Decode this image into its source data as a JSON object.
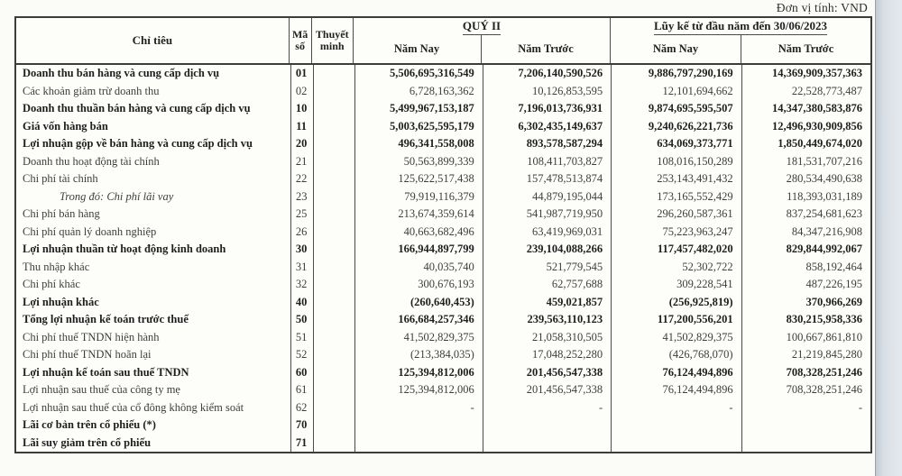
{
  "unit_label": "Đơn vị tính: VND",
  "table": {
    "header": {
      "criteria": "Chỉ tiêu",
      "code": "Mã số",
      "notes": "Thuyết minh",
      "group_q2": "QUÝ II",
      "group_ytd": "Lũy kế từ đầu năm đến 30/06/2023",
      "col_current": "Năm Nay",
      "col_prior": "Năm Trước"
    },
    "rows": [
      {
        "label": "Doanh thu bán hàng và cung cấp dịch vụ",
        "code": "01",
        "note": "",
        "q2_now": "5,506,695,316,549",
        "q2_prior": "7,206,140,590,526",
        "ytd_now": "9,886,797,290,169",
        "ytd_prior": "14,369,909,357,363",
        "style": "bold"
      },
      {
        "label": "Các khoản giảm trừ doanh thu",
        "code": "02",
        "note": "",
        "q2_now": "6,728,163,362",
        "q2_prior": "10,126,853,595",
        "ytd_now": "12,101,694,662",
        "ytd_prior": "22,528,773,487",
        "style": "normal"
      },
      {
        "label": "Doanh thu thuần bán hàng và cung cấp dịch vụ",
        "code": "10",
        "note": "",
        "q2_now": "5,499,967,153,187",
        "q2_prior": "7,196,013,736,931",
        "ytd_now": "9,874,695,595,507",
        "ytd_prior": "14,347,380,583,876",
        "style": "bold"
      },
      {
        "label": "Giá vốn hàng bán",
        "code": "11",
        "note": "",
        "q2_now": "5,003,625,595,179",
        "q2_prior": "6,302,435,149,637",
        "ytd_now": "9,240,626,221,736",
        "ytd_prior": "12,496,930,909,856",
        "style": "bold"
      },
      {
        "label": "Lợi nhuận gộp về bán hàng và cung cấp dịch vụ",
        "code": "20",
        "note": "",
        "q2_now": "496,341,558,008",
        "q2_prior": "893,578,587,294",
        "ytd_now": "634,069,373,771",
        "ytd_prior": "1,850,449,674,020",
        "style": "bold"
      },
      {
        "label": "Doanh thu hoạt động tài chính",
        "code": "21",
        "note": "",
        "q2_now": "50,563,899,339",
        "q2_prior": "108,411,703,827",
        "ytd_now": "108,016,150,289",
        "ytd_prior": "181,531,707,216",
        "style": "normal"
      },
      {
        "label": "Chi phí tài chính",
        "code": "22",
        "note": "",
        "q2_now": "125,622,517,438",
        "q2_prior": "157,478,513,874",
        "ytd_now": "253,143,491,432",
        "ytd_prior": "280,534,490,638",
        "style": "normal"
      },
      {
        "label": "Trong đó: Chi phí lãi vay",
        "code": "23",
        "note": "",
        "q2_now": "79,919,116,379",
        "q2_prior": "44,879,195,044",
        "ytd_now": "173,165,552,429",
        "ytd_prior": "118,393,031,189",
        "style": "italic"
      },
      {
        "label": "Chi phí bán hàng",
        "code": "25",
        "note": "",
        "q2_now": "213,674,359,614",
        "q2_prior": "541,987,719,950",
        "ytd_now": "296,260,587,361",
        "ytd_prior": "837,254,681,623",
        "style": "normal"
      },
      {
        "label": "Chi phí quản lý doanh nghiệp",
        "code": "26",
        "note": "",
        "q2_now": "40,663,682,496",
        "q2_prior": "63,419,969,031",
        "ytd_now": "75,223,963,247",
        "ytd_prior": "84,347,216,908",
        "style": "normal"
      },
      {
        "label": "Lợi nhuận thuần từ hoạt động kinh doanh",
        "code": "30",
        "note": "",
        "q2_now": "166,944,897,799",
        "q2_prior": "239,104,088,266",
        "ytd_now": "117,457,482,020",
        "ytd_prior": "829,844,992,067",
        "style": "bold"
      },
      {
        "label": "Thu nhập khác",
        "code": "31",
        "note": "",
        "q2_now": "40,035,740",
        "q2_prior": "521,779,545",
        "ytd_now": "52,302,722",
        "ytd_prior": "858,192,464",
        "style": "normal"
      },
      {
        "label": "Chi phí khác",
        "code": "32",
        "note": "",
        "q2_now": "300,676,193",
        "q2_prior": "62,757,688",
        "ytd_now": "309,228,541",
        "ytd_prior": "487,226,195",
        "style": "normal"
      },
      {
        "label": "Lợi nhuận khác",
        "code": "40",
        "note": "",
        "q2_now": "(260,640,453)",
        "q2_prior": "459,021,857",
        "ytd_now": "(256,925,819)",
        "ytd_prior": "370,966,269",
        "style": "bold"
      },
      {
        "label": "Tổng lợi nhuận kế toán trước thuế",
        "code": "50",
        "note": "",
        "q2_now": "166,684,257,346",
        "q2_prior": "239,563,110,123",
        "ytd_now": "117,200,556,201",
        "ytd_prior": "830,215,958,336",
        "style": "bold"
      },
      {
        "label": "Chi phí thuế TNDN hiện hành",
        "code": "51",
        "note": "",
        "q2_now": "41,502,829,375",
        "q2_prior": "21,058,310,505",
        "ytd_now": "41,502,829,375",
        "ytd_prior": "100,667,861,810",
        "style": "normal"
      },
      {
        "label": "Chi phí thuế TNDN hoãn lại",
        "code": "52",
        "note": "",
        "q2_now": "(213,384,035)",
        "q2_prior": "17,048,252,280",
        "ytd_now": "(426,768,070)",
        "ytd_prior": "21,219,845,280",
        "style": "normal"
      },
      {
        "label": "Lợi nhuận kế toán sau thuế TNDN",
        "code": "60",
        "note": "",
        "q2_now": "125,394,812,006",
        "q2_prior": "201,456,547,338",
        "ytd_now": "76,124,494,896",
        "ytd_prior": "708,328,251,246",
        "style": "bold"
      },
      {
        "label": "Lợi nhuận sau thuế của công ty mẹ",
        "code": "61",
        "note": "",
        "q2_now": "125,394,812,006",
        "q2_prior": "201,456,547,338",
        "ytd_now": "76,124,494,896",
        "ytd_prior": "708,328,251,246",
        "style": "normal"
      },
      {
        "label": "Lợi nhuận sau thuế của cổ đông không kiểm soát",
        "code": "62",
        "note": "",
        "q2_now": "-",
        "q2_prior": "-",
        "ytd_now": "-",
        "ytd_prior": "-",
        "style": "normal"
      },
      {
        "label": "Lãi cơ bản trên cổ phiếu (*)",
        "code": "70",
        "note": "",
        "q2_now": "",
        "q2_prior": "",
        "ytd_now": "",
        "ytd_prior": "",
        "style": "bold"
      },
      {
        "label": "Lãi suy giảm trên cổ phiếu",
        "code": "71",
        "note": "",
        "q2_now": "",
        "q2_prior": "",
        "ytd_now": "",
        "ytd_prior": "",
        "style": "bold"
      }
    ]
  }
}
